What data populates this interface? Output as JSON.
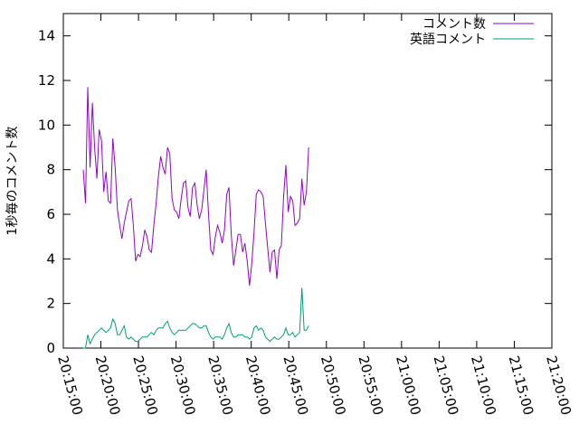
{
  "chart_data": {
    "type": "line",
    "ylabel": "1秒毎のコメント数",
    "xlabel": "",
    "ylim": [
      0,
      15
    ],
    "yticks": [
      0,
      2,
      4,
      6,
      8,
      10,
      12,
      14
    ],
    "xlim_minutes": [
      15,
      80
    ],
    "xticks": [
      {
        "minute": 15,
        "label": "20:15:00"
      },
      {
        "minute": 20,
        "label": "20:20:00"
      },
      {
        "minute": 25,
        "label": "20:25:00"
      },
      {
        "minute": 30,
        "label": "20:30:00"
      },
      {
        "minute": 35,
        "label": "20:35:00"
      },
      {
        "minute": 40,
        "label": "20:40:00"
      },
      {
        "minute": 45,
        "label": "20:45:00"
      },
      {
        "minute": 50,
        "label": "20:50:00"
      },
      {
        "minute": 55,
        "label": "20:55:00"
      },
      {
        "minute": 60,
        "label": "21:00:00"
      },
      {
        "minute": 65,
        "label": "21:05:00"
      },
      {
        "minute": 70,
        "label": "21:10:00"
      },
      {
        "minute": 75,
        "label": "21:15:00"
      },
      {
        "minute": 80,
        "label": "21:20:00"
      }
    ],
    "legend_position": "top-right",
    "x_start_minute": 17.65,
    "x_step_minutes": 0.303,
    "series": [
      {
        "name": "コメント数",
        "color": "#9400d3",
        "values": [
          8.0,
          6.5,
          11.7,
          8.1,
          11.0,
          9.0,
          7.6,
          9.8,
          9.3,
          7.0,
          7.9,
          6.6,
          6.5,
          9.4,
          8.1,
          6.2,
          5.5,
          4.9,
          5.6,
          6.1,
          6.6,
          6.7,
          5.5,
          3.9,
          4.2,
          4.1,
          4.6,
          5.3,
          5.0,
          4.4,
          4.3,
          5.5,
          6.5,
          7.7,
          8.6,
          8.1,
          7.8,
          9.0,
          8.7,
          6.7,
          6.2,
          6.1,
          5.8,
          6.7,
          7.4,
          7.5,
          6.3,
          5.9,
          7.2,
          7.4,
          6.4,
          5.8,
          6.2,
          7.1,
          8.0,
          6.0,
          4.4,
          4.2,
          5.0,
          5.5,
          5.2,
          4.7,
          5.3,
          6.9,
          7.2,
          5.1,
          3.7,
          4.4,
          5.1,
          5.1,
          4.3,
          4.7,
          3.9,
          2.8,
          3.8,
          5.2,
          6.9,
          7.1,
          7.0,
          6.8,
          5.6,
          4.5,
          3.4,
          4.3,
          4.4,
          3.1,
          4.4,
          4.6,
          6.8,
          8.2,
          6.1,
          6.8,
          6.6,
          5.5,
          5.6,
          5.8,
          7.6,
          6.4,
          7.0,
          9.0
        ]
      },
      {
        "name": "英語コメント",
        "color": "#009e73",
        "values": [
          0.0,
          0.0,
          0.6,
          0.2,
          0.4,
          0.6,
          0.7,
          0.8,
          0.9,
          0.8,
          0.7,
          0.8,
          0.9,
          1.3,
          1.1,
          0.6,
          0.6,
          0.8,
          1.0,
          0.5,
          0.4,
          0.5,
          0.4,
          0.3,
          0.3,
          0.4,
          0.5,
          0.5,
          0.5,
          0.6,
          0.7,
          0.6,
          0.8,
          0.9,
          0.9,
          0.9,
          1.1,
          1.2,
          0.9,
          0.7,
          0.6,
          0.7,
          0.8,
          0.8,
          0.8,
          0.8,
          0.9,
          1.0,
          1.1,
          1.1,
          1.0,
          0.9,
          0.9,
          1.0,
          1.0,
          0.7,
          0.5,
          0.4,
          0.5,
          0.5,
          0.5,
          0.4,
          0.6,
          0.9,
          1.1,
          0.7,
          0.5,
          0.5,
          0.6,
          0.6,
          0.6,
          0.5,
          0.5,
          0.4,
          0.5,
          0.9,
          1.0,
          0.8,
          0.9,
          0.8,
          0.5,
          0.4,
          0.3,
          0.4,
          0.5,
          0.4,
          0.4,
          0.5,
          0.6,
          0.9,
          0.6,
          0.6,
          0.7,
          0.5,
          0.6,
          0.7,
          2.7,
          0.8,
          0.8,
          1.0
        ]
      }
    ]
  }
}
